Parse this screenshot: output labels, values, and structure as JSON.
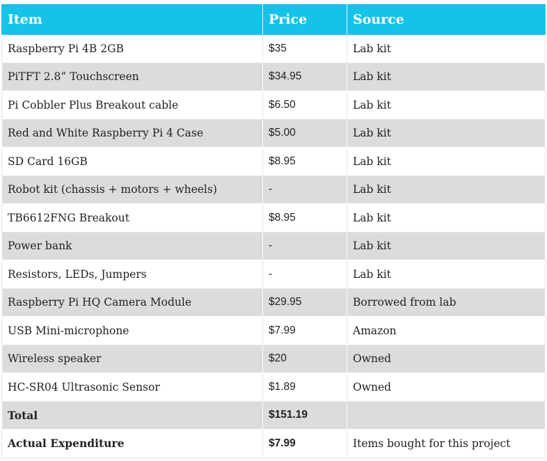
{
  "header": {
    "item": "Item",
    "price": "Price",
    "source": "Source"
  },
  "rows": [
    {
      "item": "Raspberry Pi 4B 2GB",
      "price": "$35",
      "source": "Lab kit"
    },
    {
      "item": "PiTFT 2.8” Touchscreen",
      "price": "$34.95",
      "source": "Lab kit"
    },
    {
      "item": "Pi Cobbler Plus Breakout cable",
      "price": "$6.50",
      "source": "Lab kit"
    },
    {
      "item": "Red and White Raspberry Pi 4 Case",
      "price": "$5.00",
      "source": "Lab kit"
    },
    {
      "item": "SD Card 16GB",
      "price": "$8.95",
      "source": "Lab kit"
    },
    {
      "item": "Robot kit (chassis + motors + wheels)",
      "price": "-",
      "source": "Lab kit"
    },
    {
      "item": "TB6612FNG Breakout",
      "price": "$8.95",
      "source": "Lab kit"
    },
    {
      "item": "Power bank",
      "price": "-",
      "source": "Lab kit"
    },
    {
      "item": "Resistors, LEDs, Jumpers",
      "price": "-",
      "source": "Lab kit"
    },
    {
      "item": "Raspberry Pi HQ Camera Module",
      "price": "$29.95",
      "source": "Borrowed from lab"
    },
    {
      "item": "USB Mini-microphone",
      "price": "$7.99",
      "source": "Amazon"
    },
    {
      "item": "Wireless speaker",
      "price": "$20",
      "source": "Owned"
    },
    {
      "item": "HC-SR04 Ultrasonic Sensor",
      "price": "$1.89",
      "source": "Owned"
    }
  ],
  "totals": [
    {
      "item": "Total",
      "price": "$151.19",
      "source": ""
    },
    {
      "item": "Actual Expenditure",
      "price": "$7.99",
      "source": "Items bought for this project"
    }
  ],
  "colors": {
    "header_bg": "#17c2e8",
    "stripe": "#dcdcdc"
  }
}
